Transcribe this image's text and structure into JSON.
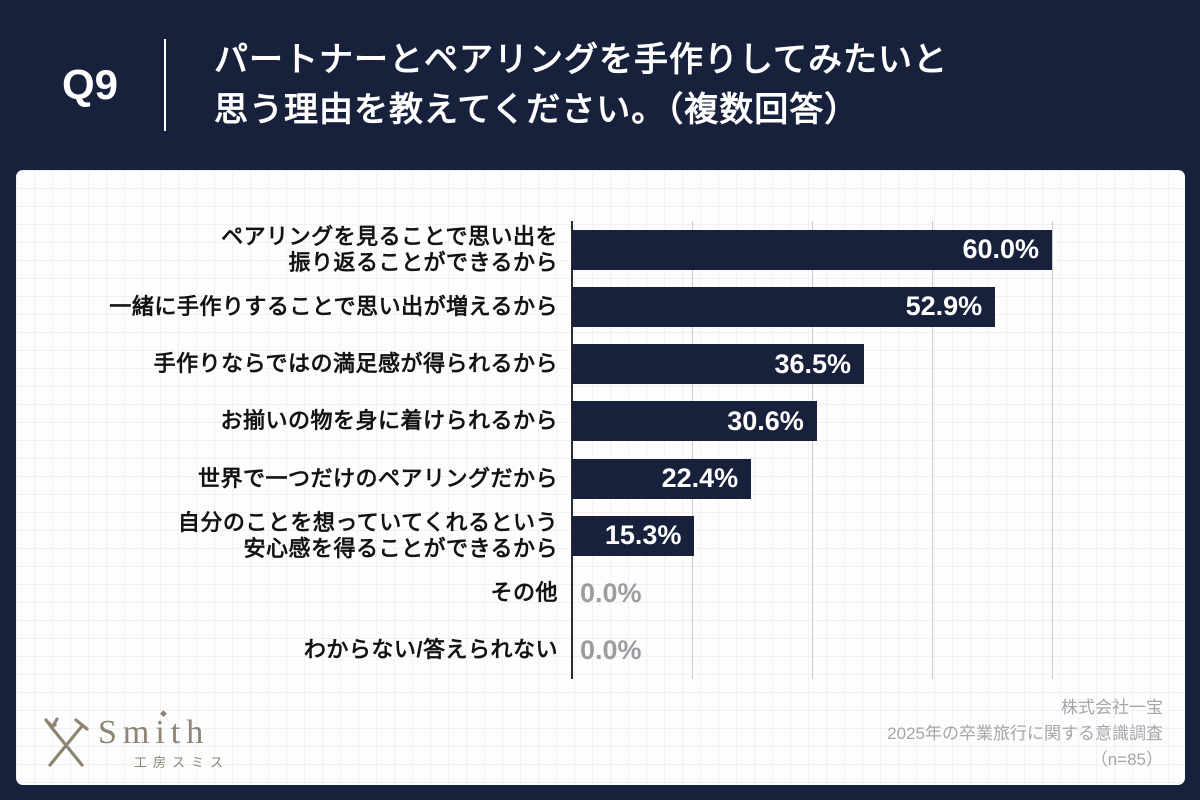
{
  "header": {
    "question_number": "Q9",
    "title_line1": "パートナーとペアリングを手作りしてみたいと",
    "title_line2": "思う理由を教えてください。（複数回答）"
  },
  "chart_data": {
    "type": "bar",
    "orientation": "horizontal",
    "title": "パートナーとペアリングを手作りしてみたいと思う理由を教えてください。（複数回答）",
    "categories": [
      "ペアリングを見ることで思い出を\n振り返ることができるから",
      "一緒に手作りすることで思い出が増えるから",
      "手作りならではの満足感が得られるから",
      "お揃いの物を身に着けられるから",
      "世界で一つだけのペアリングだから",
      "自分のことを想っていてくれるという\n安心感を得ることができるから",
      "その他",
      "わからない/答えられない"
    ],
    "values": [
      60.0,
      52.9,
      36.5,
      30.6,
      22.4,
      15.3,
      0.0,
      0.0
    ],
    "value_labels": [
      "60.0%",
      "52.9%",
      "36.5%",
      "30.6%",
      "22.4%",
      "15.3%",
      "0.0%",
      "0.0%"
    ],
    "xlim": [
      0,
      75
    ],
    "gridline_interval_pct": 15,
    "grid": true,
    "legend": false,
    "bar_color": "#18213c",
    "zero_label_color": "#9c9da1"
  },
  "footer": {
    "logo": {
      "brand": "Smith",
      "subtitle": "工房スミス",
      "diamond_icon": "◆",
      "color": "#8d8474"
    },
    "source": {
      "line1": "株式会社一宝",
      "line2": "2025年の卒業旅行に関する意識調査",
      "line3": "（n=85）"
    }
  }
}
